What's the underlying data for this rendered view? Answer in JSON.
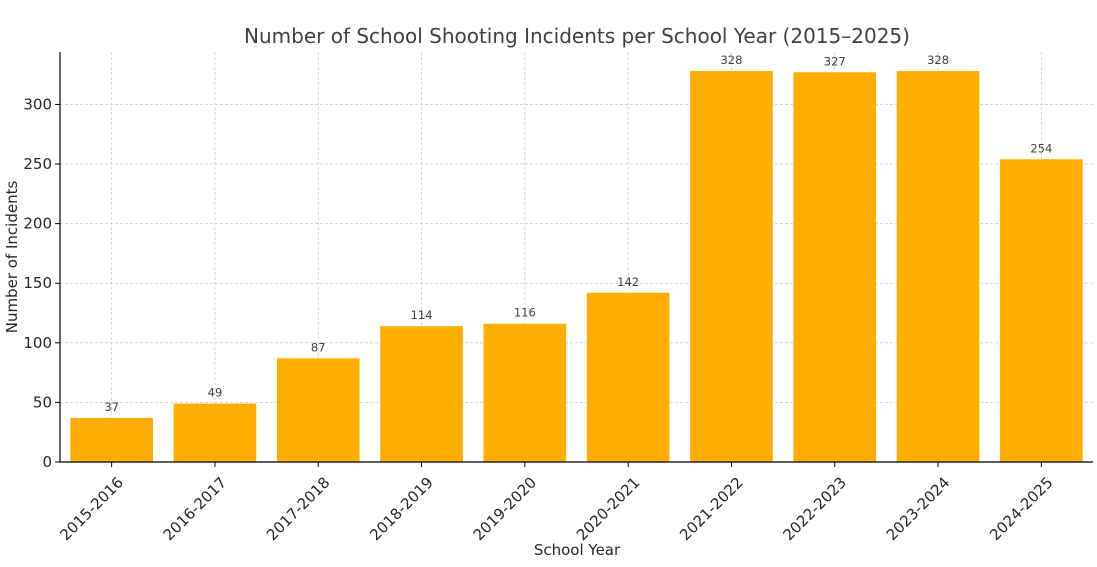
{
  "chart_data": {
    "type": "bar",
    "title": "Number of School Shooting Incidents per School Year (2015–2025)",
    "xlabel": "School Year",
    "ylabel": "Number of Incidents",
    "categories": [
      "2015-2016",
      "2016-2017",
      "2017-2018",
      "2018-2019",
      "2019-2020",
      "2020-2021",
      "2021-2022",
      "2022-2023",
      "2023-2024",
      "2024-2025"
    ],
    "values": [
      37,
      49,
      87,
      114,
      116,
      142,
      328,
      327,
      328,
      254
    ],
    "ylim": [
      0,
      344
    ],
    "yticks": [
      0,
      50,
      100,
      150,
      200,
      250,
      300
    ],
    "grid": true,
    "legend": "none",
    "bar_color": "#FFAE00",
    "data_labels": true
  }
}
